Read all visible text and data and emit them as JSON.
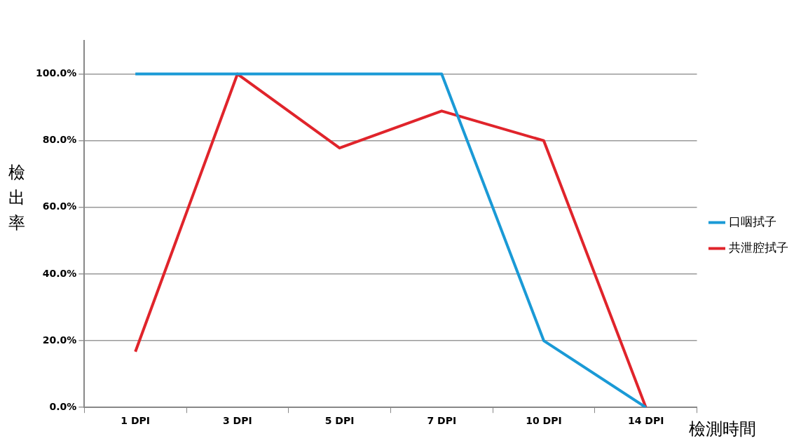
{
  "chart_data": {
    "type": "line",
    "xlabel": "檢測時間",
    "ylabel": "檢出率",
    "categories": [
      "1 DPI",
      "3 DPI",
      "5 DPI",
      "7 DPI",
      "10 DPI",
      "14 DPI"
    ],
    "series": [
      {
        "name": "口咽拭子",
        "color": "#1a9ad6",
        "values": [
          100,
          100,
          100,
          100,
          20,
          0
        ]
      },
      {
        "name": "共泄腔拭子",
        "color": "#e0242b",
        "values": [
          16.7,
          100,
          77.8,
          88.9,
          80,
          0
        ]
      }
    ],
    "ylim": [
      0,
      110
    ],
    "yticks": [
      {
        "value": 0,
        "label": "0.0%"
      },
      {
        "value": 20,
        "label": "20.0%"
      },
      {
        "value": 40,
        "label": "40.0%"
      },
      {
        "value": 60,
        "label": "60.0%"
      },
      {
        "value": 80,
        "label": "80.0%"
      },
      {
        "value": 100,
        "label": "100.0%"
      }
    ],
    "grid": "y",
    "legend": "right",
    "marker": "none",
    "line_style": "solid"
  }
}
